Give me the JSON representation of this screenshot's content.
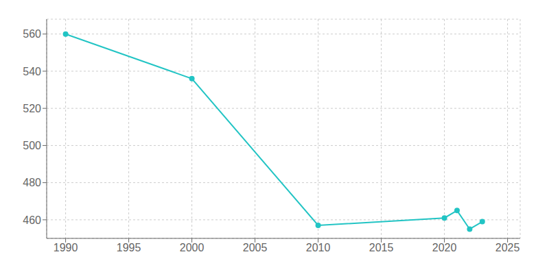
{
  "chart_data": {
    "type": "line",
    "x": [
      1990,
      2000,
      2010,
      2020,
      2021,
      2022,
      2023
    ],
    "values": [
      560,
      536,
      457,
      461,
      465,
      455,
      459
    ],
    "color": "#22c4c4",
    "marker": "circle",
    "xlim": [
      1988.5,
      2026
    ],
    "ylim": [
      450,
      568
    ],
    "xticks": [
      1990,
      1995,
      2000,
      2005,
      2010,
      2015,
      2020,
      2025
    ],
    "yticks": [
      460,
      480,
      500,
      520,
      540,
      560
    ],
    "grid": true
  }
}
